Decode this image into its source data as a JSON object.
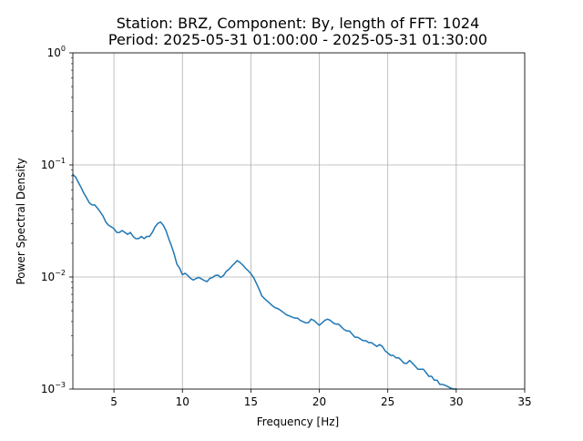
{
  "chart_data": {
    "type": "line",
    "title_line1": "Station: BRZ, Component: By, length of FFT: 1024",
    "title_line2": "Period: 2025-05-31 01:00:00 - 2025-05-31 01:30:00",
    "xlabel": "Frequency [Hz]",
    "ylabel": "Power Spectral Density",
    "xlim": [
      2,
      35
    ],
    "ylim": [
      0.001,
      1
    ],
    "yscale": "log",
    "grid": true,
    "xticks": [
      5,
      10,
      15,
      20,
      25,
      30,
      35
    ],
    "xtick_labels": [
      "5",
      "10",
      "15",
      "20",
      "25",
      "30",
      "35"
    ],
    "yticks": [
      0.001,
      0.01,
      0.1,
      1
    ],
    "ytick_labels": [
      {
        "base": "10",
        "exp": "−3"
      },
      {
        "base": "10",
        "exp": "−2"
      },
      {
        "base": "10",
        "exp": "−1"
      },
      {
        "base": "10",
        "exp": "0"
      }
    ],
    "colors": {
      "line": "#1f77b4",
      "grid": "#b0b0b0",
      "axes": "#000000"
    },
    "series": [
      {
        "x": [
          2.0,
          2.2,
          2.4,
          2.6,
          2.8,
          3.0,
          3.2,
          3.4,
          3.6,
          3.8,
          4.0,
          4.2,
          4.4,
          4.6,
          4.8,
          5.0,
          5.2,
          5.4,
          5.6,
          5.8,
          6.0,
          6.2,
          6.4,
          6.6,
          6.8,
          7.0,
          7.2,
          7.4,
          7.6,
          7.8,
          8.0,
          8.2,
          8.4,
          8.6,
          8.8,
          9.0,
          9.2,
          9.4,
          9.6,
          9.8,
          10.0,
          10.2,
          10.4,
          10.6,
          10.8,
          11.0,
          11.2,
          11.4,
          11.6,
          11.8,
          12.0,
          12.2,
          12.4,
          12.6,
          12.8,
          13.0,
          13.2,
          13.4,
          13.6,
          13.8,
          14.0,
          14.2,
          14.4,
          14.6,
          14.8,
          15.0,
          15.2,
          15.4,
          15.6,
          15.8,
          16.0,
          16.2,
          16.4,
          16.6,
          16.8,
          17.0,
          17.2,
          17.4,
          17.6,
          17.8,
          18.0,
          18.2,
          18.4,
          18.6,
          18.8,
          19.0,
          19.2,
          19.4,
          19.6,
          19.8,
          20.0,
          20.2,
          20.4,
          20.6,
          20.8,
          21.0,
          21.2,
          21.4,
          21.6,
          21.8,
          22.0,
          22.2,
          22.4,
          22.6,
          22.8,
          23.0,
          23.2,
          23.4,
          23.6,
          23.8,
          24.0,
          24.2,
          24.4,
          24.6,
          24.8,
          25.0,
          25.2,
          25.4,
          25.6,
          25.8,
          26.0,
          26.2,
          26.4,
          26.6,
          26.8,
          27.0,
          27.2,
          27.4,
          27.6,
          27.8,
          28.0,
          28.2,
          28.4,
          28.6,
          28.8,
          29.0,
          29.2,
          29.4,
          29.6,
          29.8,
          30.0
        ],
        "y": [
          0.082,
          0.078,
          0.07,
          0.063,
          0.056,
          0.051,
          0.046,
          0.044,
          0.044,
          0.041,
          0.038,
          0.035,
          0.031,
          0.029,
          0.028,
          0.027,
          0.025,
          0.025,
          0.026,
          0.025,
          0.024,
          0.025,
          0.023,
          0.022,
          0.022,
          0.023,
          0.022,
          0.023,
          0.023,
          0.025,
          0.028,
          0.03,
          0.031,
          0.029,
          0.026,
          0.022,
          0.019,
          0.016,
          0.013,
          0.012,
          0.0105,
          0.0108,
          0.0103,
          0.0097,
          0.0094,
          0.0097,
          0.0099,
          0.0096,
          0.0093,
          0.0091,
          0.0097,
          0.0099,
          0.0103,
          0.0104,
          0.0099,
          0.0103,
          0.0112,
          0.0117,
          0.0125,
          0.0132,
          0.014,
          0.0135,
          0.0128,
          0.012,
          0.0114,
          0.0107,
          0.0099,
          0.0088,
          0.0078,
          0.0068,
          0.0064,
          0.0061,
          0.0058,
          0.0055,
          0.0053,
          0.0052,
          0.005,
          0.0048,
          0.0046,
          0.0045,
          0.0044,
          0.0043,
          0.0043,
          0.0041,
          0.004,
          0.0039,
          0.0039,
          0.0042,
          0.0041,
          0.0039,
          0.0037,
          0.0039,
          0.0041,
          0.0042,
          0.0041,
          0.0039,
          0.0038,
          0.0038,
          0.0036,
          0.0034,
          0.0033,
          0.0033,
          0.0031,
          0.0029,
          0.0029,
          0.0028,
          0.0027,
          0.0027,
          0.0026,
          0.0026,
          0.0025,
          0.0024,
          0.0025,
          0.0024,
          0.0022,
          0.0021,
          0.002,
          0.002,
          0.0019,
          0.0019,
          0.0018,
          0.0017,
          0.0017,
          0.0018,
          0.0017,
          0.0016,
          0.0015,
          0.0015,
          0.0015,
          0.0014,
          0.0013,
          0.0013,
          0.0012,
          0.0012,
          0.0011,
          0.0011,
          0.00108,
          0.00105,
          0.00102,
          0.001,
          0.001
        ]
      }
    ]
  }
}
